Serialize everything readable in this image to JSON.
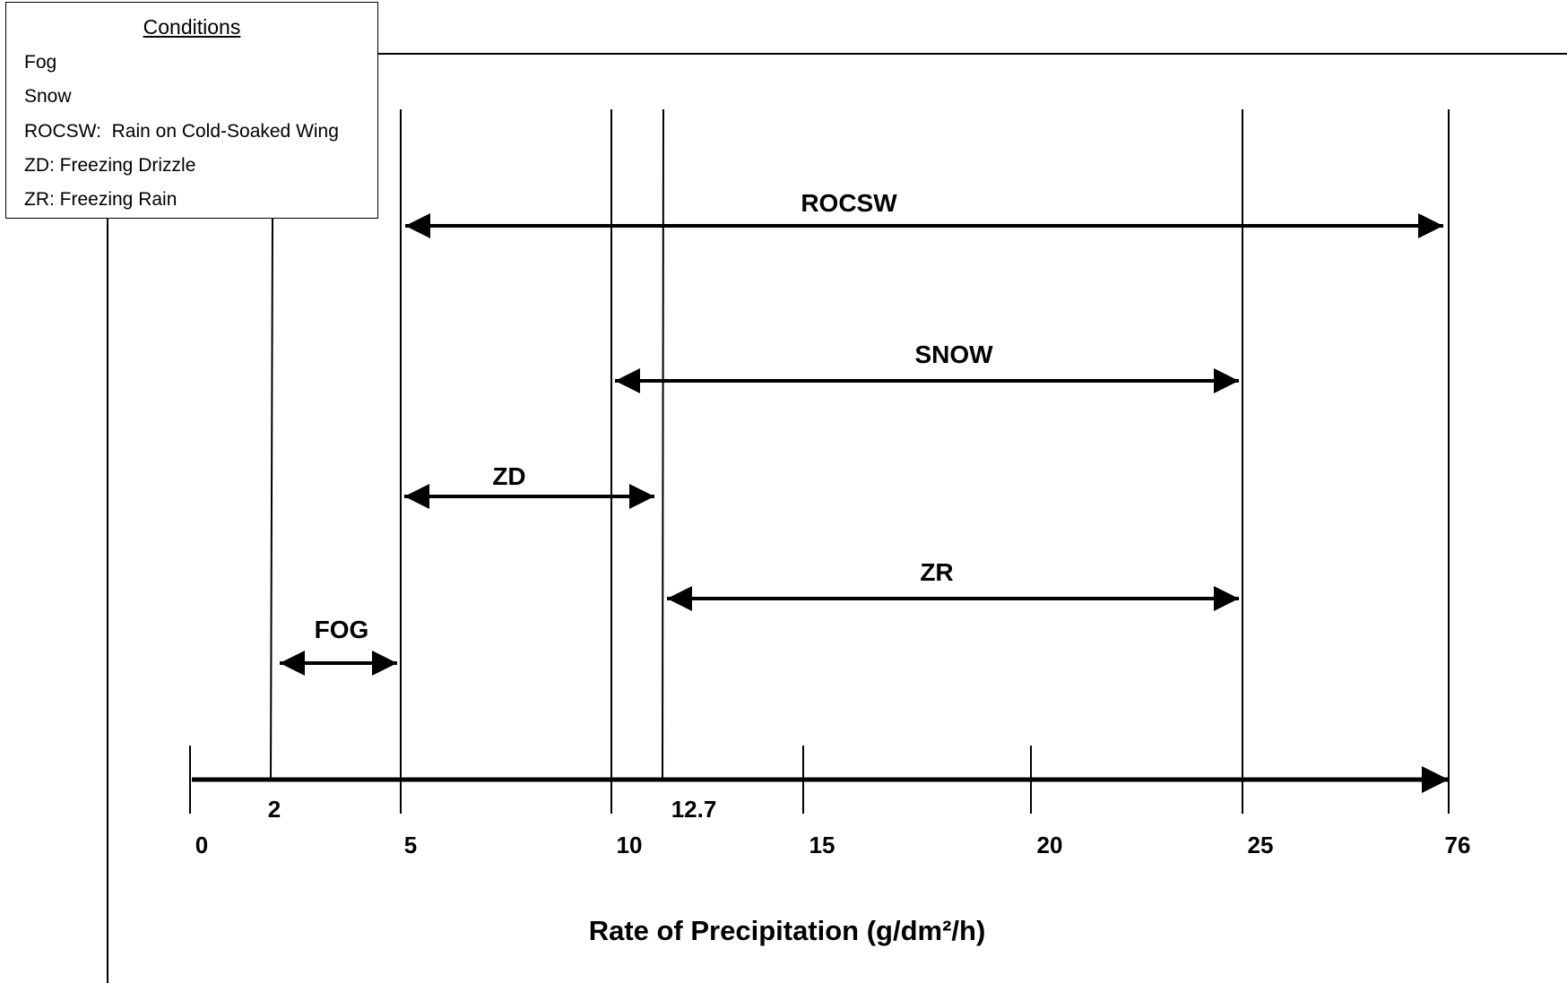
{
  "legend": {
    "title": "Conditions",
    "items": [
      "Fog",
      "Snow",
      "ROCSW:  Rain on Cold-Soaked Wing",
      "ZD: Freezing Drizzle",
      "ZR: Freezing Rain"
    ]
  },
  "axis": {
    "title": "Rate of Precipitation (g/dm²/h)",
    "major_ticks": [
      "0",
      "5",
      "10",
      "15",
      "20",
      "25",
      "76"
    ],
    "minor_ticks": [
      "2",
      "12.7"
    ]
  },
  "ranges": [
    {
      "label": "ROCSW",
      "from": 5,
      "to": 76
    },
    {
      "label": "SNOW",
      "from": 10,
      "to": 25
    },
    {
      "label": "ZD",
      "from": 5,
      "to": 12.7
    },
    {
      "label": "ZR",
      "from": 12.7,
      "to": 25
    },
    {
      "label": "FOG",
      "from": 2,
      "to": 5
    }
  ]
}
